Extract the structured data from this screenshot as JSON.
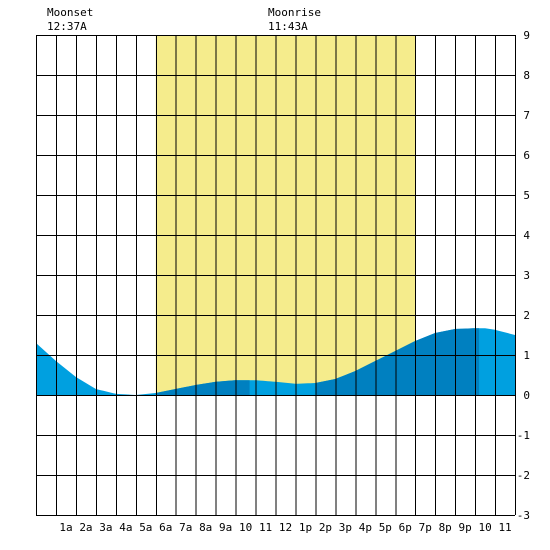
{
  "colors": {
    "background": "#ffffff",
    "grid": "#000000",
    "daylight": "#f5ec8c",
    "tide_light": "#00a0e0",
    "tide_dark": "#0080c0"
  },
  "moon": {
    "moonset_label": "Moonset",
    "moonset_time": "12:37A",
    "moonrise_label": "Moonrise",
    "moonrise_time": "11:43A"
  },
  "chart_data": {
    "type": "area",
    "title": "",
    "xlabel": "",
    "ylabel": "",
    "xlim": [
      0,
      24
    ],
    "ylim": [
      -3,
      9
    ],
    "x_tick_labels": [
      "1a",
      "2a",
      "3a",
      "4a",
      "5a",
      "6a",
      "7a",
      "8a",
      "9a",
      "10",
      "11",
      "12",
      "1p",
      "2p",
      "3p",
      "4p",
      "5p",
      "6p",
      "7p",
      "8p",
      "9p",
      "10",
      "11"
    ],
    "y_tick_labels": [
      "9",
      "8",
      "7",
      "6",
      "5",
      "4",
      "3",
      "2",
      "1",
      "0",
      "-1",
      "-2",
      "-3"
    ],
    "daylight_hours": [
      6,
      19
    ],
    "tide_segments_dark": [
      [
        6,
        10.7
      ],
      [
        14,
        22.2
      ]
    ],
    "series": [
      {
        "x": [
          0,
          1,
          2,
          3,
          4,
          5,
          6,
          7,
          8,
          9,
          10,
          11,
          12,
          13,
          14,
          15,
          16,
          17,
          18,
          19,
          20,
          21,
          22,
          22.5,
          23,
          24
        ],
        "y": [
          1.3,
          0.85,
          0.45,
          0.15,
          0.03,
          0.0,
          0.05,
          0.15,
          0.25,
          0.33,
          0.37,
          0.37,
          0.33,
          0.28,
          0.3,
          0.4,
          0.6,
          0.85,
          1.1,
          1.35,
          1.55,
          1.65,
          1.67,
          1.67,
          1.63,
          1.5
        ]
      }
    ]
  }
}
